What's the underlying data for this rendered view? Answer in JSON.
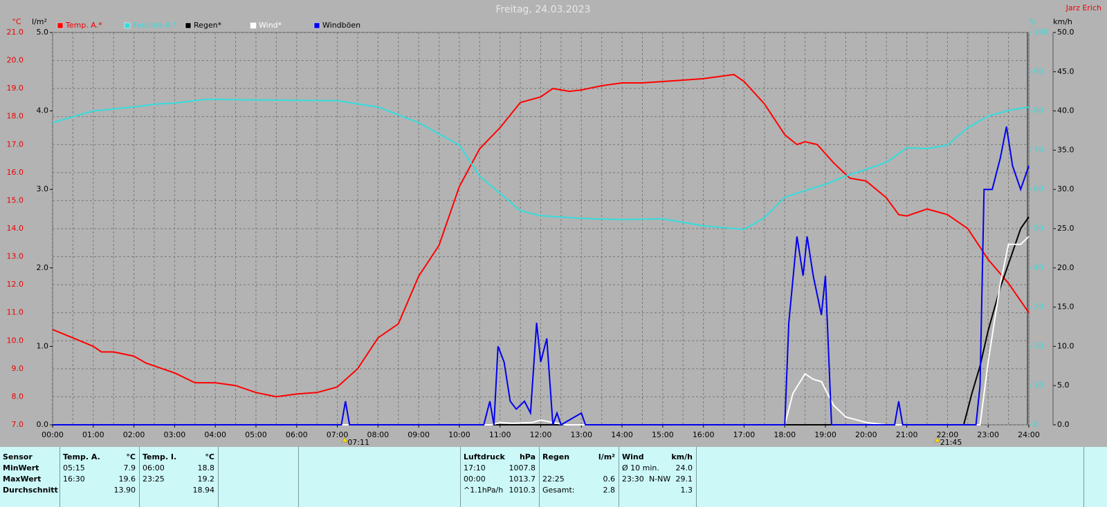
{
  "chart_data": {
    "type": "line",
    "title": "Freitag, 24.03.2023",
    "source": "Jarz Erich",
    "y_label": "°C",
    "y2_label": "l/m²",
    "y3_label": "%",
    "y4_label": "km/h",
    "xlim": [
      0,
      24
    ],
    "xticks": [
      {
        "value": 0,
        "label": "00:00"
      },
      {
        "value": 1,
        "label": "01:00"
      },
      {
        "value": 2,
        "label": "02:00"
      },
      {
        "value": 3,
        "label": "03:00"
      },
      {
        "value": 4,
        "label": "04:00"
      },
      {
        "value": 5,
        "label": "05:00"
      },
      {
        "value": 6,
        "label": "06:00"
      },
      {
        "value": 7,
        "label": "07:00"
      },
      {
        "value": 8,
        "label": "08:00"
      },
      {
        "value": 9,
        "label": "09:00"
      },
      {
        "value": 10,
        "label": "10:00"
      },
      {
        "value": 11,
        "label": "11:00"
      },
      {
        "value": 12,
        "label": "12:00"
      },
      {
        "value": 13,
        "label": "13:00"
      },
      {
        "value": 14,
        "label": "14:00"
      },
      {
        "value": 15,
        "label": "15:00"
      },
      {
        "value": 16,
        "label": "16:00"
      },
      {
        "value": 17,
        "label": "17:00"
      },
      {
        "value": 18,
        "label": "18:00"
      },
      {
        "value": 19,
        "label": "19:00"
      },
      {
        "value": 20,
        "label": "20:00"
      },
      {
        "value": 21,
        "label": "21:00"
      },
      {
        "value": 22,
        "label": "22:00"
      },
      {
        "value": 23,
        "label": "23:00"
      },
      {
        "value": 24,
        "label": "24:00"
      }
    ],
    "ylim": [
      7,
      21
    ],
    "yticks": [
      {
        "value": 7,
        "label": "7.0"
      },
      {
        "value": 8,
        "label": "8.0"
      },
      {
        "value": 9,
        "label": "9.0"
      },
      {
        "value": 10,
        "label": "10.0"
      },
      {
        "value": 11,
        "label": "11.0"
      },
      {
        "value": 12,
        "label": "12.0"
      },
      {
        "value": 13,
        "label": "13.0"
      },
      {
        "value": 14,
        "label": "14.0"
      },
      {
        "value": 15,
        "label": "15.0"
      },
      {
        "value": 16,
        "label": "16.0"
      },
      {
        "value": 17,
        "label": "17.0"
      },
      {
        "value": 18,
        "label": "18.0"
      },
      {
        "value": 19,
        "label": "19.0"
      },
      {
        "value": 20,
        "label": "20.0"
      },
      {
        "value": 21,
        "label": "21.0"
      }
    ],
    "y2lim": [
      0,
      5
    ],
    "y2ticks": [
      {
        "value": 0,
        "label": "0.0"
      },
      {
        "value": 1,
        "label": "1.0"
      },
      {
        "value": 2,
        "label": "2.0"
      },
      {
        "value": 3,
        "label": "3.0"
      },
      {
        "value": 4,
        "label": "4.0"
      },
      {
        "value": 5,
        "label": "5.0"
      }
    ],
    "y3lim": [
      0,
      100
    ],
    "y3ticks": [
      0,
      10,
      20,
      30,
      40,
      50,
      60,
      70,
      80,
      90,
      100
    ],
    "y4lim": [
      0,
      50
    ],
    "y4ticks": [
      {
        "value": 0,
        "label": "0.0"
      },
      {
        "value": 5,
        "label": "5.0"
      },
      {
        "value": 10,
        "label": "10.0"
      },
      {
        "value": 15,
        "label": "15.0"
      },
      {
        "value": 20,
        "label": "20.0"
      },
      {
        "value": 25,
        "label": "25.0"
      },
      {
        "value": 30,
        "label": "30.0"
      },
      {
        "value": 35,
        "label": "35.0"
      },
      {
        "value": 40,
        "label": "40.0"
      },
      {
        "value": 45,
        "label": "45.0"
      },
      {
        "value": 50,
        "label": "50.0"
      }
    ],
    "grid": true,
    "series": [
      {
        "name": "Temp. A.*",
        "color": "#ff0000",
        "axis": "y",
        "x": [
          0,
          0.5,
          1,
          1.2,
          1.5,
          2,
          2.3,
          3,
          3.5,
          4,
          4.5,
          5,
          5.5,
          6,
          6.5,
          7,
          7.5,
          8,
          8.5,
          9,
          9.5,
          10,
          10.5,
          11,
          11.5,
          12,
          12.3,
          12.7,
          13,
          13.5,
          14,
          14.5,
          15,
          15.5,
          16,
          16.5,
          16.75,
          17,
          17.5,
          18,
          18.3,
          18.5,
          18.8,
          19.2,
          19.6,
          20,
          20.5,
          20.8,
          21,
          21.5,
          22,
          22.5,
          23,
          23.5,
          24
        ],
        "values": [
          10.4,
          10.1,
          9.8,
          9.6,
          9.6,
          9.45,
          9.2,
          8.85,
          8.5,
          8.5,
          8.4,
          8.15,
          8.0,
          8.1,
          8.15,
          8.35,
          9.0,
          10.1,
          10.6,
          12.3,
          13.4,
          15.5,
          16.85,
          17.6,
          18.5,
          18.7,
          19.0,
          18.9,
          18.95,
          19.1,
          19.2,
          19.2,
          19.25,
          19.3,
          19.35,
          19.45,
          19.5,
          19.25,
          18.45,
          17.35,
          17.0,
          17.1,
          17.0,
          16.35,
          15.8,
          15.7,
          15.1,
          14.5,
          14.45,
          14.7,
          14.5,
          14.0,
          12.9,
          12.05,
          11.0
        ]
      },
      {
        "name": "Feuchte A.*",
        "color": "#33dddd",
        "axis": "y3",
        "x": [
          0,
          1,
          2,
          2.5,
          3,
          3.8,
          5,
          7,
          8,
          9,
          10,
          10.5,
          11,
          11.5,
          12,
          13,
          14,
          15,
          16,
          17,
          17.5,
          18,
          18.5,
          19,
          19.5,
          20,
          20.5,
          21,
          21.5,
          22,
          22.5,
          23,
          23.5,
          24
        ],
        "values": [
          77,
          80,
          81,
          81.7,
          82,
          83,
          82.8,
          82.6,
          81,
          77,
          71.3,
          63.4,
          59,
          54.6,
          53.3,
          52.6,
          52.3,
          52.5,
          50.7,
          49.8,
          52.8,
          58,
          59.7,
          61.3,
          63.4,
          65.1,
          66.9,
          70.6,
          70.4,
          71.3,
          75.7,
          78.7,
          80.1,
          81
        ]
      },
      {
        "name": "Regen*",
        "color": "#000000",
        "axis": "y2",
        "x": [
          0,
          22.4,
          22.6,
          22.8,
          23,
          23.3,
          23.6,
          23.8,
          24
        ],
        "values": [
          0,
          0,
          0.4,
          0.75,
          1.2,
          1.75,
          2.2,
          2.5,
          2.65
        ]
      },
      {
        "name": "Wind*",
        "color": "#ffffff",
        "axis": "y4",
        "x": [
          0,
          10.8,
          11,
          11.3,
          11.8,
          12,
          12.3,
          12.6,
          18,
          18.2,
          18.5,
          18.7,
          18.9,
          19.2,
          19.5,
          20,
          20.5,
          22.8,
          23,
          23.3,
          23.5,
          23.8,
          24
        ],
        "values": [
          0,
          0,
          0.3,
          0.2,
          0.3,
          0.6,
          0.3,
          0,
          0,
          4,
          6.5,
          5.8,
          5.5,
          2.5,
          1,
          0.3,
          0,
          0,
          8,
          18,
          23,
          23,
          24
        ]
      },
      {
        "name": "Windböen",
        "color": "#0000ee",
        "axis": "y4",
        "x": [
          0,
          7.1,
          7.2,
          7.3,
          10.6,
          10.75,
          10.85,
          10.95,
          11.1,
          11.25,
          11.4,
          11.6,
          11.75,
          11.9,
          12,
          12.15,
          12.3,
          12.4,
          12.5,
          13,
          13.1,
          18,
          18.1,
          18.3,
          18.45,
          18.55,
          18.7,
          18.9,
          19,
          19.15,
          20.7,
          20.8,
          20.9,
          22.7,
          22.8,
          22.9,
          23.1,
          23.3,
          23.45,
          23.6,
          23.8,
          24
        ],
        "values": [
          0,
          0,
          3,
          0,
          0,
          3,
          0,
          10,
          8,
          3,
          2,
          3,
          1.5,
          13,
          8,
          11,
          0,
          1.5,
          0,
          1.5,
          0,
          0,
          13,
          24,
          19,
          24,
          19,
          14,
          19,
          0,
          0,
          3,
          0,
          0,
          5,
          30,
          30,
          34,
          38,
          33,
          30,
          33
        ]
      }
    ],
    "annotations": [
      {
        "x": 7.1833,
        "text": "07:11"
      },
      {
        "x": 21.75,
        "text": "21:45"
      }
    ]
  },
  "table": {
    "header": [
      [
        "Sensor"
      ],
      [
        "Temp. A.",
        "°C"
      ],
      [
        "Temp. I.",
        "°C"
      ],
      [
        "Luftdruck",
        "hPa"
      ],
      [
        "Regen",
        "l/m²"
      ],
      [
        "Wind",
        "km/h"
      ]
    ],
    "rows": [
      [
        [
          "MinWert"
        ],
        [
          "05:15",
          "7.9"
        ],
        [
          "06:00",
          "18.8"
        ],
        [
          "17:10",
          "1007.8"
        ],
        null,
        [
          "Ø 10 min.",
          "24.0"
        ]
      ],
      [
        [
          "MaxWert"
        ],
        [
          "16:30",
          "19.6"
        ],
        [
          "23:25",
          "19.2"
        ],
        [
          "00:00",
          "1013.7"
        ],
        [
          "22:25",
          "0.6"
        ],
        [
          "23:30",
          "N-NW",
          "29.1"
        ]
      ],
      [
        [
          "Durchschnitt"
        ],
        [
          "13.90"
        ],
        [
          "18.94"
        ],
        [
          "^1.1hPa/h",
          "1010.3"
        ],
        [
          "Gesamt:",
          "2.8"
        ],
        [
          "1.3"
        ]
      ]
    ]
  }
}
